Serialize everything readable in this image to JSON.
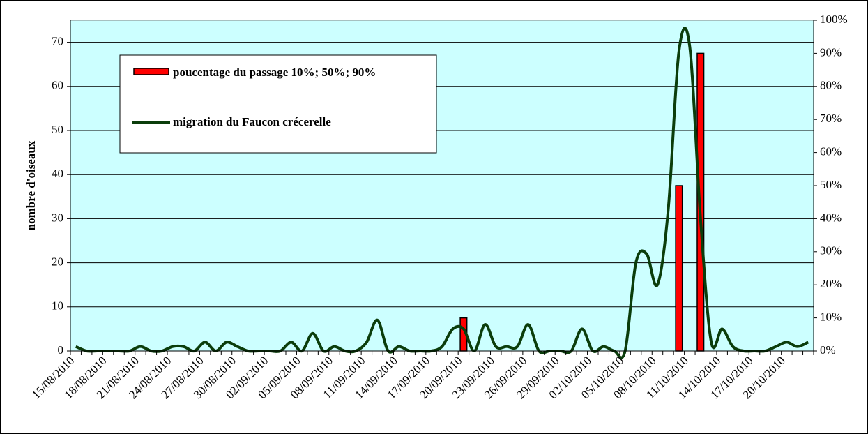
{
  "chart_data": {
    "type": "bar-line",
    "y_label": "nombre d'oiseaux",
    "categories": [
      "15/08/2010",
      null,
      null,
      "18/08/2010",
      null,
      null,
      "21/08/2010",
      null,
      null,
      "24/08/2010",
      null,
      null,
      "27/08/2010",
      null,
      null,
      "30/08/2010",
      null,
      null,
      "02/09/2010",
      null,
      null,
      "05/09/2010",
      null,
      null,
      "08/09/2010",
      null,
      null,
      "11/09/2010",
      null,
      null,
      "14/09/2010",
      null,
      null,
      "17/09/2010",
      null,
      null,
      "20/09/2010",
      null,
      null,
      "23/09/2010",
      null,
      null,
      "26/09/2010",
      null,
      null,
      "29/09/2010",
      null,
      null,
      "02/10/2010",
      null,
      null,
      "05/10/2010",
      null,
      null,
      "08/10/2010",
      null,
      null,
      "11/10/2010",
      null,
      null,
      "14/10/2010",
      null,
      null,
      "17/10/2010",
      null,
      null,
      "20/10/2010",
      null,
      null
    ],
    "series": [
      {
        "name": "poucentage du passage 10%; 50%; 90%",
        "type": "bar",
        "axis": "y2",
        "color": "#ff0000",
        "values": [
          null,
          null,
          null,
          null,
          null,
          null,
          null,
          null,
          null,
          null,
          null,
          null,
          null,
          null,
          null,
          null,
          null,
          null,
          null,
          null,
          null,
          null,
          null,
          null,
          null,
          null,
          null,
          null,
          null,
          null,
          null,
          null,
          null,
          null,
          null,
          null,
          10,
          null,
          null,
          null,
          null,
          null,
          null,
          null,
          null,
          null,
          null,
          null,
          null,
          null,
          null,
          null,
          null,
          null,
          null,
          null,
          50,
          null,
          90,
          null,
          null,
          null,
          null,
          null,
          null,
          null,
          null,
          null,
          null
        ]
      },
      {
        "name": "migration du Faucon crécerelle",
        "type": "line",
        "color": "#0b3d0b",
        "values": [
          1,
          0,
          0,
          0,
          0,
          0,
          1,
          0,
          0,
          1,
          1,
          0,
          2,
          0,
          2,
          1,
          0,
          0,
          0,
          0,
          2,
          0,
          4,
          0,
          1,
          0,
          0,
          2,
          7,
          0,
          1,
          0,
          0,
          0,
          1,
          5,
          5,
          0,
          6,
          1,
          1,
          1,
          6,
          0,
          0,
          0,
          0,
          5,
          0,
          1,
          0,
          0,
          20,
          22,
          15,
          32,
          68,
          69,
          30,
          2,
          5,
          1,
          0,
          0,
          0,
          1,
          2,
          1,
          2
        ]
      }
    ],
    "ylim": [
      0,
      75
    ],
    "yticks": [
      0,
      10,
      20,
      30,
      40,
      50,
      60,
      70
    ],
    "y2lim": [
      0,
      100
    ],
    "y2ticks": [
      {
        "value": 0,
        "label": "0%"
      },
      {
        "value": 10,
        "label": "10%"
      },
      {
        "value": 20,
        "label": "20%"
      },
      {
        "value": 30,
        "label": "30%"
      },
      {
        "value": 40,
        "label": "40%"
      },
      {
        "value": 50,
        "label": "50%"
      },
      {
        "value": 60,
        "label": "60%"
      },
      {
        "value": 70,
        "label": "70%"
      },
      {
        "value": 80,
        "label": "80%"
      },
      {
        "value": 90,
        "label": "90%"
      },
      {
        "value": 100,
        "label": "100%"
      }
    ],
    "grid": true,
    "background": "#ccffff"
  }
}
